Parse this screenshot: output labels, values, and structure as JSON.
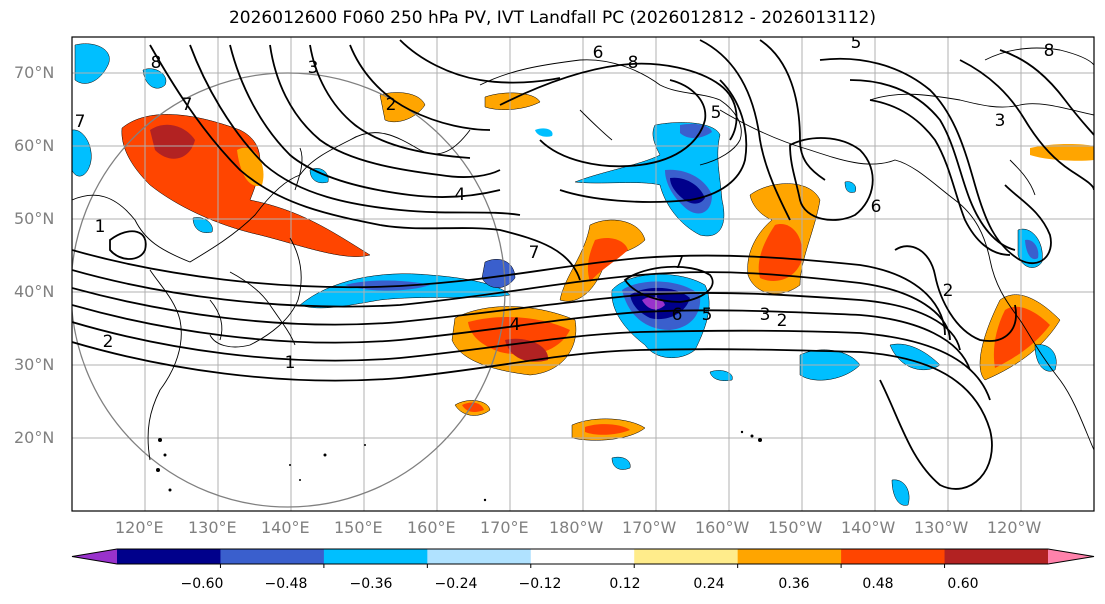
{
  "title": "2026012600 F060 250 hPa PV, IVT Landfall PC (2026012812 - 2026013112)",
  "latitude_labels": [
    "20°N",
    "30°N",
    "40°N",
    "50°N",
    "60°N",
    "70°N"
  ],
  "longitude_labels": [
    "120°E",
    "130°E",
    "140°E",
    "150°E",
    "160°E",
    "170°E",
    "180°W",
    "170°W",
    "160°W",
    "150°W",
    "140°W",
    "130°W",
    "120°W"
  ],
  "colorbar": {
    "tick_labels": [
      "−0.60",
      "−0.48",
      "−0.36",
      "−0.24",
      "−0.12",
      "0.12",
      "0.24",
      "0.36",
      "0.48",
      "0.60"
    ],
    "colors": [
      "#9932cc",
      "#00008b",
      "#3a5fcd",
      "#00bfff",
      "#b0e2ff",
      "#ffffff",
      "#ffec8b",
      "#ffa500",
      "#ff4500",
      "#b22222",
      "#ff82ab"
    ]
  },
  "contour_labels": [
    "8",
    "3",
    "7",
    "2",
    "6",
    "8",
    "5",
    "8",
    "4",
    "7",
    "7",
    "5",
    "3",
    "2",
    "4",
    "1",
    "6",
    "2",
    "6",
    "5",
    "3",
    "1",
    "2",
    "7"
  ]
}
